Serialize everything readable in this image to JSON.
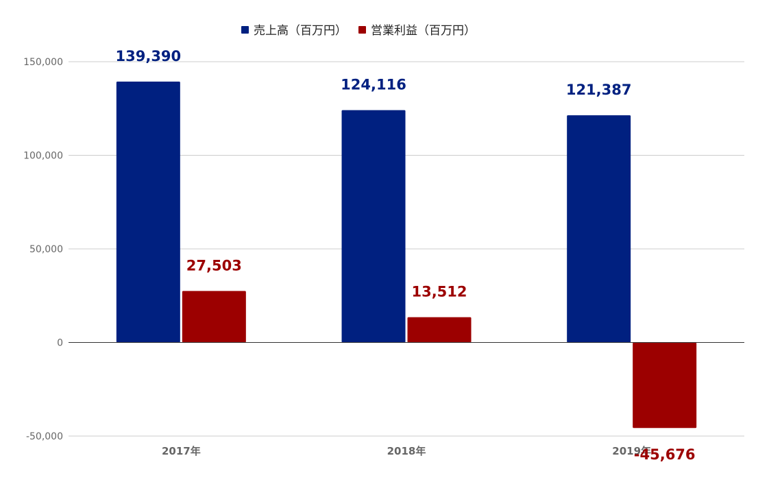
{
  "chart_data": {
    "type": "bar",
    "categories": [
      "2017年",
      "2018年",
      "2019年"
    ],
    "series": [
      {
        "name": "売上高（百万円）",
        "values": [
          139390,
          124116,
          121387
        ],
        "labels": [
          "139,390",
          "124,116",
          "121,387"
        ],
        "color": "#002080"
      },
      {
        "name": "営業利益（百万円）",
        "values": [
          27503,
          13512,
          -45676
        ],
        "labels": [
          "27,503",
          "13,512",
          "-45,676"
        ],
        "color": "#9c0000"
      }
    ],
    "y_ticks": [
      {
        "value": 150000,
        "label": "150,000"
      },
      {
        "value": 100000,
        "label": "100,000"
      },
      {
        "value": 50000,
        "label": "50,000"
      },
      {
        "value": 0,
        "label": "0"
      },
      {
        "value": -50000,
        "label": "-50,000"
      }
    ],
    "ylim": [
      -50000,
      150000
    ],
    "grid": true,
    "legend": "top"
  }
}
